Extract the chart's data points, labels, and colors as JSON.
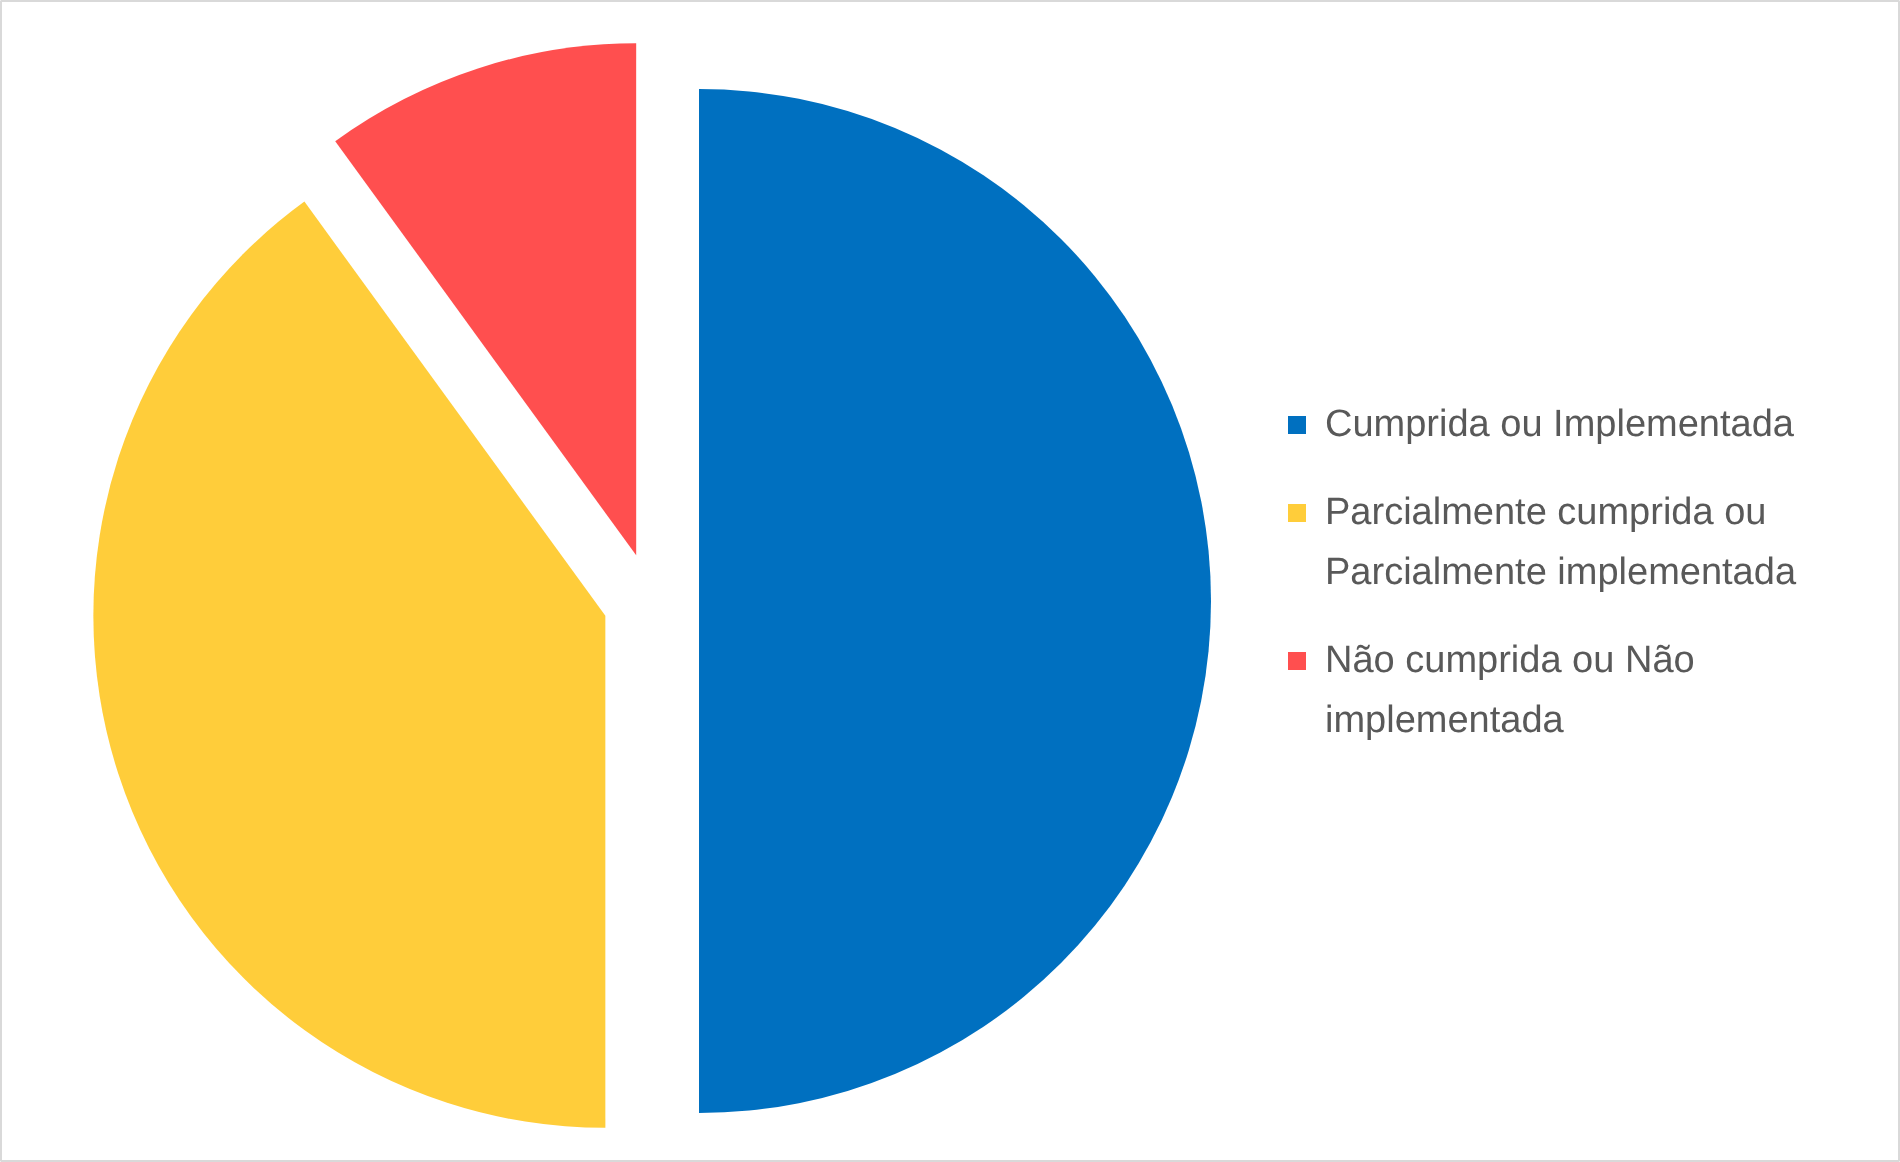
{
  "chart_data": {
    "type": "pie",
    "categories": [
      "Cumprida ou Implementada",
      "Parcialmente cumprida ou Parcialmente implementada",
      "Não cumprida ou Não implementada"
    ],
    "values": [
      50,
      40,
      10
    ],
    "colors": [
      "#0070c0",
      "#ffcd3a",
      "#ff4f4f"
    ],
    "legend": "right"
  }
}
